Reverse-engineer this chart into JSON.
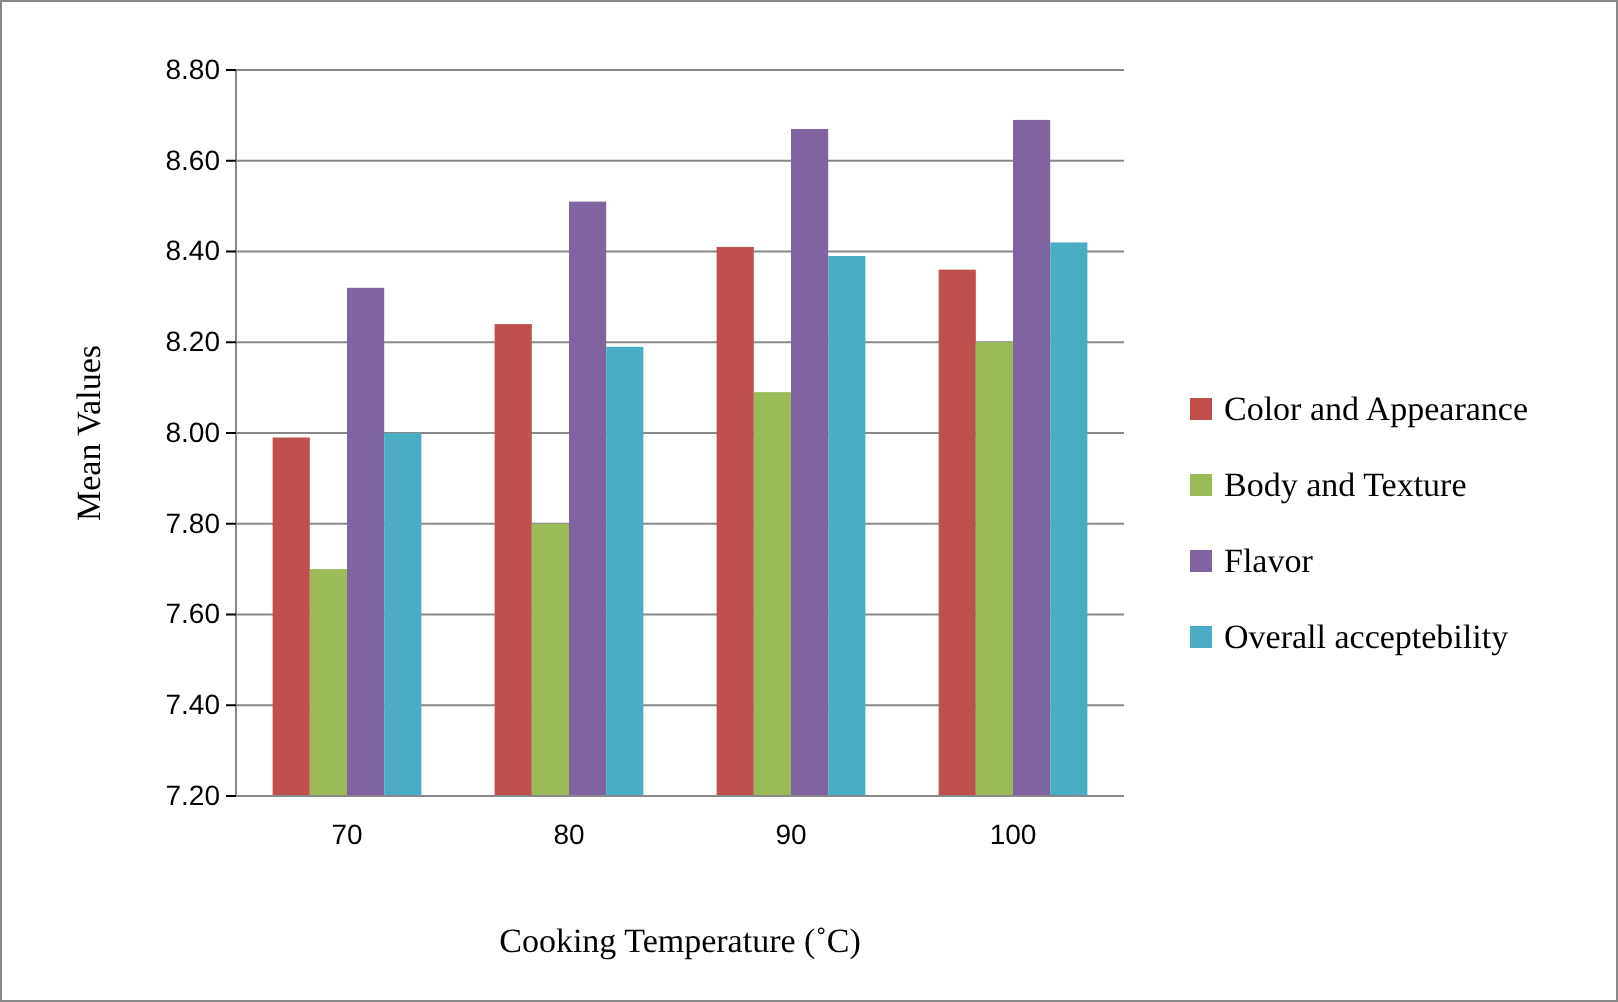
{
  "chart_data": {
    "type": "bar",
    "xlabel": "Cooking Temperature (˚C)",
    "ylabel": "Mean Values",
    "categories": [
      "70",
      "80",
      "90",
      "100"
    ],
    "series": [
      {
        "name": "Color and Appearance",
        "color": "#c0504d",
        "values": [
          7.99,
          8.24,
          8.41,
          8.36
        ]
      },
      {
        "name": "Body and Texture",
        "color": "#9bbb59",
        "values": [
          7.7,
          7.8,
          8.09,
          8.2
        ]
      },
      {
        "name": "Flavor",
        "color": "#8064a2",
        "values": [
          8.32,
          8.51,
          8.67,
          8.69
        ]
      },
      {
        "name": "Overall acceptebility",
        "color": "#4bacc6",
        "values": [
          8.0,
          8.19,
          8.39,
          8.42
        ]
      }
    ],
    "ylim": [
      7.2,
      8.8
    ],
    "yticks": [
      {
        "value": 7.2,
        "label": "7.20"
      },
      {
        "value": 7.4,
        "label": "7.40"
      },
      {
        "value": 7.6,
        "label": "7.60"
      },
      {
        "value": 7.8,
        "label": "7.80"
      },
      {
        "value": 8.0,
        "label": "8.00"
      },
      {
        "value": 8.2,
        "label": "8.20"
      },
      {
        "value": 8.4,
        "label": "8.40"
      },
      {
        "value": 8.6,
        "label": "8.60"
      },
      {
        "value": 8.8,
        "label": "8.80"
      }
    ],
    "grid": "y",
    "legend": "right"
  }
}
